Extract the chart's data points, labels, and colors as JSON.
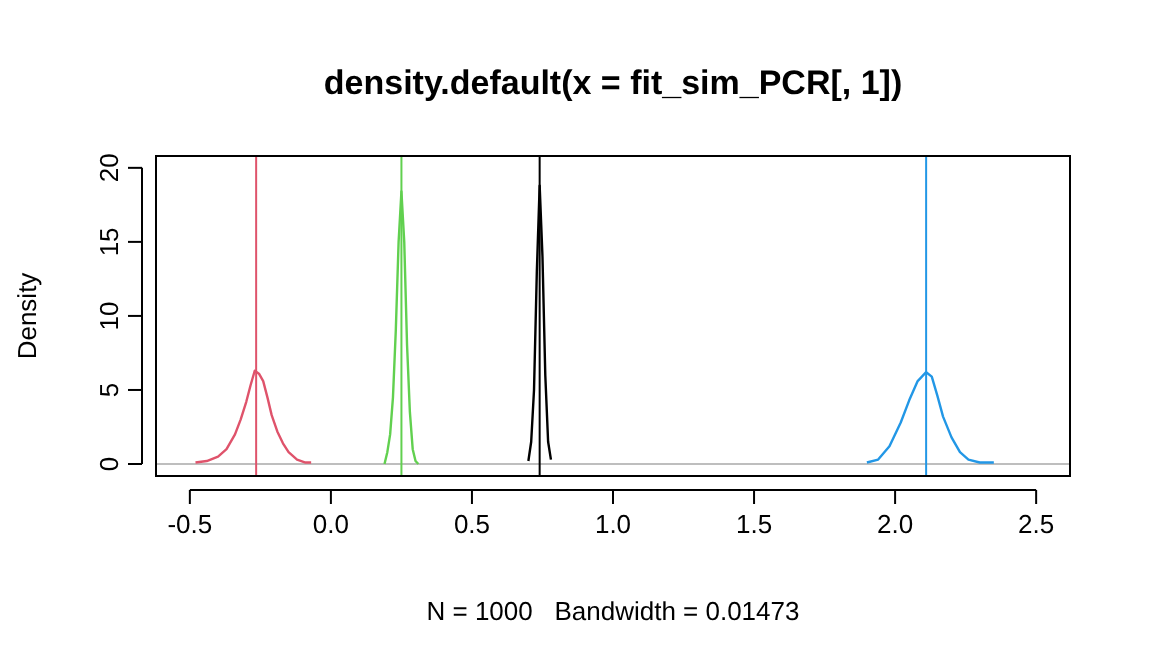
{
  "chart_data": {
    "type": "line",
    "title": "density.default(x = fit_sim_PCR[, 1])",
    "xlabel": "N = 1000   Bandwidth = 0.01473",
    "ylabel": "Density",
    "xlim": [
      -0.62,
      2.62
    ],
    "ylim": [
      -0.81,
      20.8
    ],
    "xticks": [
      -0.5,
      {
        "value": 0,
        "label": "0.0"
      },
      0.5,
      {
        "value": 1,
        "label": "1.0"
      },
      1.5,
      {
        "value": 2,
        "label": "2.0"
      },
      2.5
    ],
    "yticks": [
      0,
      5,
      10,
      15,
      20
    ],
    "grid": false,
    "marker": "none",
    "line_style": "solid",
    "series": [
      {
        "color": "#000000",
        "x": [
          0.7,
          0.71,
          0.72,
          0.73,
          0.74,
          0.75,
          0.76,
          0.77,
          0.78
        ],
        "values": [
          0.2,
          1.5,
          5,
          13,
          18.8,
          14,
          6,
          1.5,
          0.3
        ]
      },
      {
        "color": "#df536b",
        "x": [
          -0.48,
          -0.44,
          -0.4,
          -0.37,
          -0.34,
          -0.32,
          -0.3,
          -0.285,
          -0.27,
          -0.255,
          -0.24,
          -0.225,
          -0.21,
          -0.19,
          -0.17,
          -0.15,
          -0.12,
          -0.09,
          -0.07
        ],
        "values": [
          0.1,
          0.2,
          0.5,
          1.0,
          2.0,
          3.0,
          4.2,
          5.3,
          6.3,
          6.1,
          5.6,
          4.5,
          3.3,
          2.2,
          1.4,
          0.8,
          0.3,
          0.1,
          0.1
        ]
      },
      {
        "color": "#61d04f",
        "x": [
          0.19,
          0.2,
          0.21,
          0.22,
          0.23,
          0.24,
          0.25,
          0.26,
          0.27,
          0.28,
          0.29,
          0.3,
          0.31
        ],
        "values": [
          0,
          0.8,
          2.0,
          4.5,
          9,
          15,
          18.4,
          15,
          8,
          3.5,
          1.0,
          0.2,
          0
        ]
      },
      {
        "color": "#2297e6",
        "x": [
          1.9,
          1.94,
          1.98,
          2.02,
          2.05,
          2.08,
          2.11,
          2.13,
          2.15,
          2.17,
          2.2,
          2.23,
          2.26,
          2.3,
          2.35
        ],
        "values": [
          0.1,
          0.3,
          1.2,
          2.8,
          4.3,
          5.6,
          6.2,
          5.9,
          4.6,
          3.2,
          1.8,
          0.8,
          0.3,
          0.1,
          0.1
        ]
      }
    ],
    "ref_lines": [
      {
        "axis": "y",
        "value": 0,
        "color": "#bebebe",
        "line_style": "solid"
      },
      {
        "axis": "x",
        "value": -0.265,
        "color": "#df536b",
        "line_style": "solid"
      },
      {
        "axis": "x",
        "value": 0.25,
        "color": "#61d04f",
        "line_style": "solid"
      },
      {
        "axis": "x",
        "value": 0.74,
        "color": "#000000",
        "line_style": "solid"
      },
      {
        "axis": "x",
        "value": 2.11,
        "color": "#2297e6",
        "line_style": "solid"
      }
    ]
  }
}
